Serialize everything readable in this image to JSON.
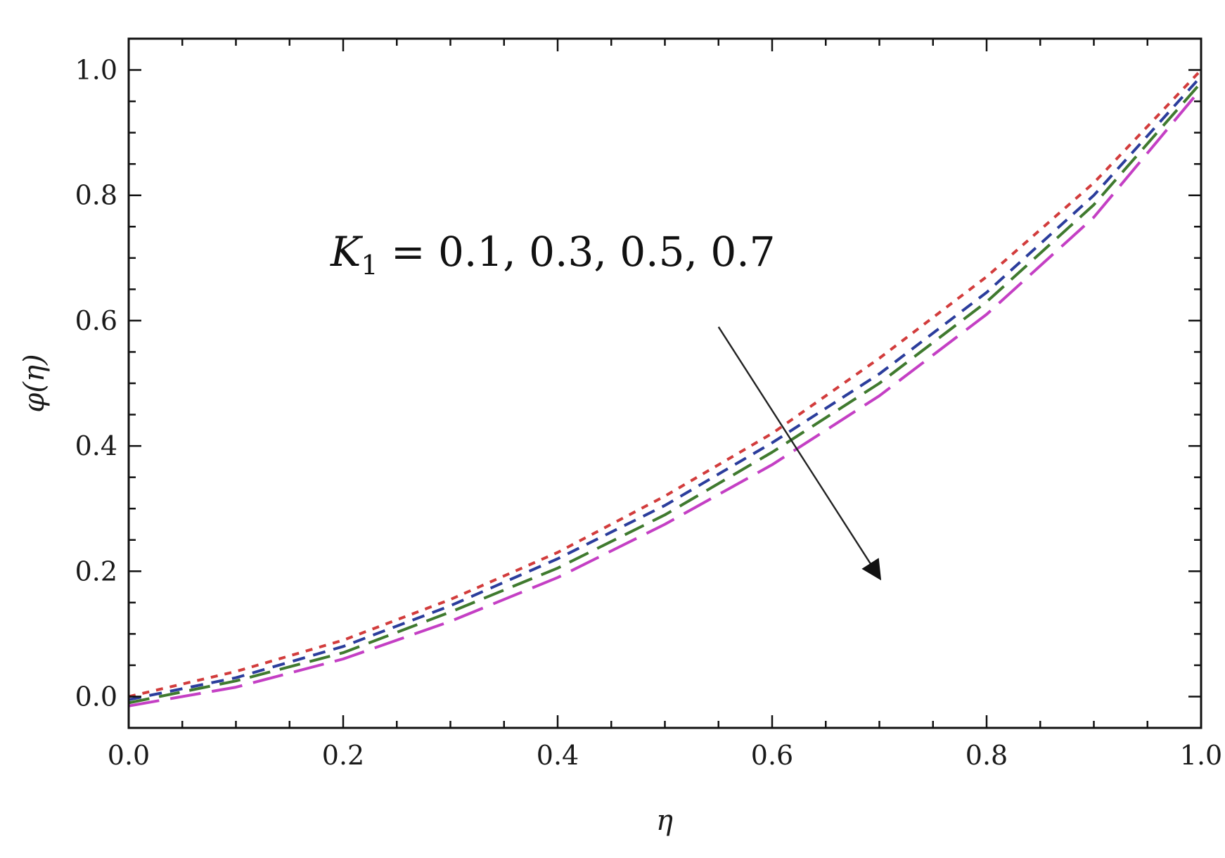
{
  "chart_data": {
    "type": "line",
    "title": "",
    "xlabel": "η",
    "ylabel": "φ(η)",
    "xlim": [
      0.0,
      1.0
    ],
    "ylim": [
      -0.05,
      1.05
    ],
    "xticks": [
      "0.0",
      "0.2",
      "0.4",
      "0.6",
      "0.8",
      "1.0"
    ],
    "yticks": [
      "0.0",
      "0.2",
      "0.4",
      "0.6",
      "0.8",
      "1.0"
    ],
    "grid": false,
    "annotation": {
      "symbol": "K",
      "subscript": "1",
      "text": " = 0.1, 0.3, 0.5, 0.7",
      "arrow": {
        "from": [
          0.55,
          0.59
        ],
        "to": [
          0.7,
          0.19
        ]
      }
    },
    "series": [
      {
        "color": "#d23c3c",
        "dash": "short",
        "x": [
          0,
          0.1,
          0.2,
          0.3,
          0.4,
          0.5,
          0.6,
          0.7,
          0.8,
          0.9,
          1.0
        ],
        "y": [
          0.0,
          0.04,
          0.09,
          0.155,
          0.23,
          0.32,
          0.42,
          0.54,
          0.67,
          0.82,
          1.0
        ]
      },
      {
        "color": "#2b3d9c",
        "dash": "medium",
        "x": [
          0,
          0.1,
          0.2,
          0.3,
          0.4,
          0.5,
          0.6,
          0.7,
          0.8,
          0.9,
          1.0
        ],
        "y": [
          -0.005,
          0.03,
          0.08,
          0.145,
          0.22,
          0.305,
          0.405,
          0.515,
          0.645,
          0.8,
          0.99
        ]
      },
      {
        "color": "#3f7a2e",
        "dash": "long",
        "x": [
          0,
          0.1,
          0.2,
          0.3,
          0.4,
          0.5,
          0.6,
          0.7,
          0.8,
          0.9,
          1.0
        ],
        "y": [
          -0.01,
          0.025,
          0.07,
          0.135,
          0.205,
          0.29,
          0.39,
          0.5,
          0.63,
          0.785,
          0.98
        ]
      },
      {
        "color": "#c43fc4",
        "dash": "longest",
        "x": [
          0,
          0.1,
          0.2,
          0.3,
          0.4,
          0.5,
          0.6,
          0.7,
          0.8,
          0.9,
          1.0
        ],
        "y": [
          -0.015,
          0.015,
          0.06,
          0.12,
          0.19,
          0.275,
          0.37,
          0.48,
          0.61,
          0.765,
          0.97
        ]
      }
    ]
  }
}
